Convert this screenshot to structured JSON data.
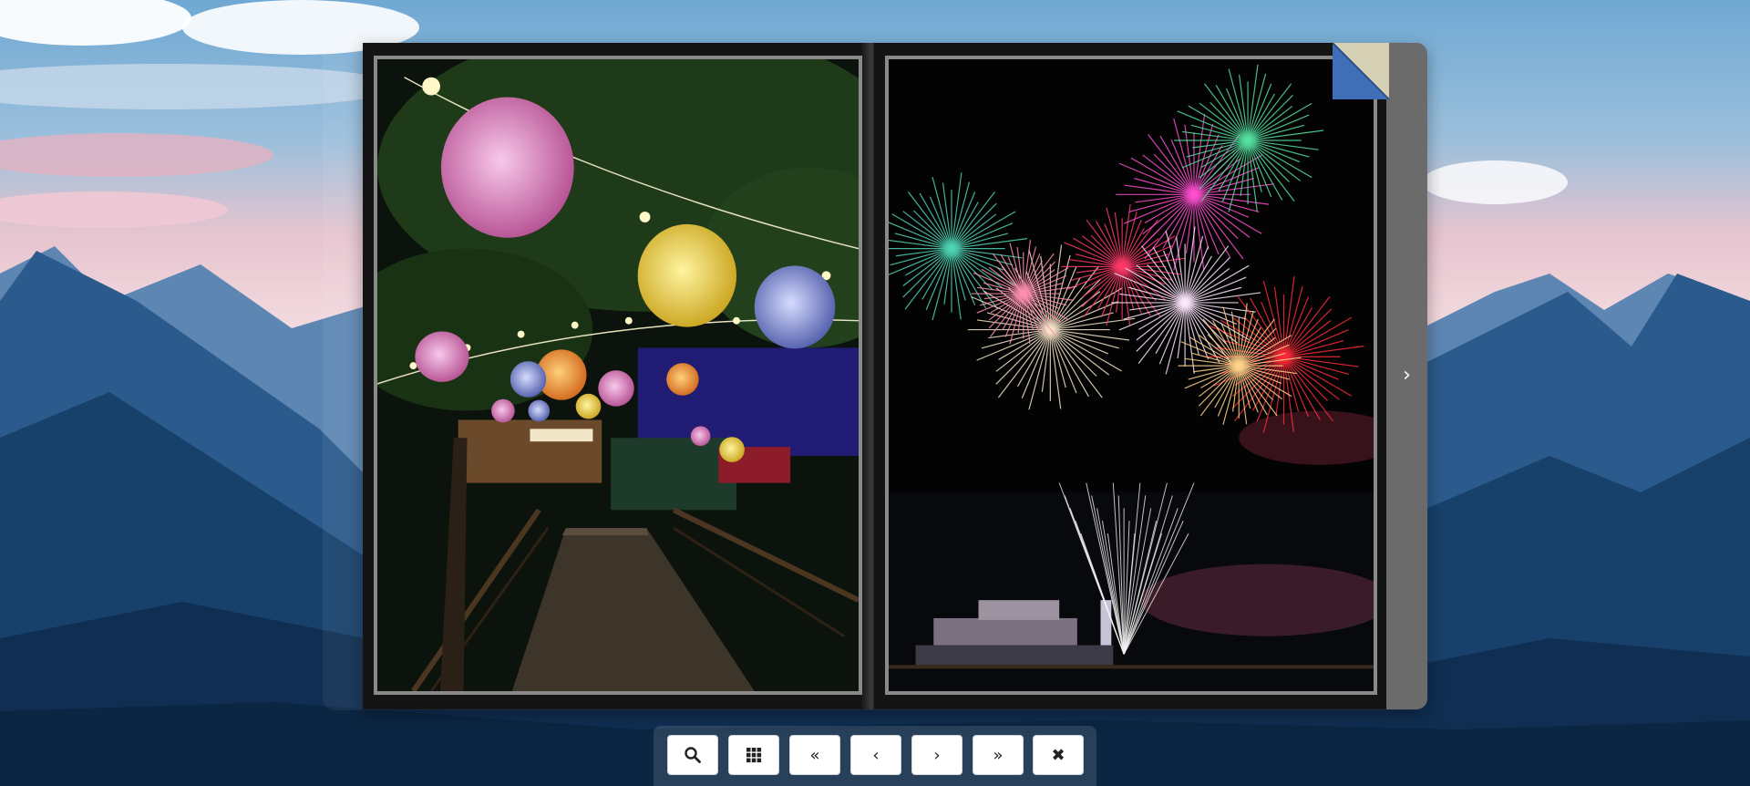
{
  "background": {
    "sky_color": "#7fb2d6",
    "mountain_color": "#1c4a78"
  },
  "book": {
    "left_page": {
      "image": "lanterns-night-walkway"
    },
    "right_page": {
      "image": "fireworks-over-pier"
    },
    "next_arrow": "›"
  },
  "toolbar": {
    "buttons": [
      {
        "icon": "search-icon",
        "label": ""
      },
      {
        "icon": "grid-icon",
        "label": ""
      },
      {
        "icon": "first-page-icon",
        "label": "«"
      },
      {
        "icon": "previous-page-icon",
        "label": "‹"
      },
      {
        "icon": "next-page-icon",
        "label": "›"
      },
      {
        "icon": "last-page-icon",
        "label": "»"
      },
      {
        "icon": "close-icon",
        "label": "✖"
      }
    ]
  }
}
